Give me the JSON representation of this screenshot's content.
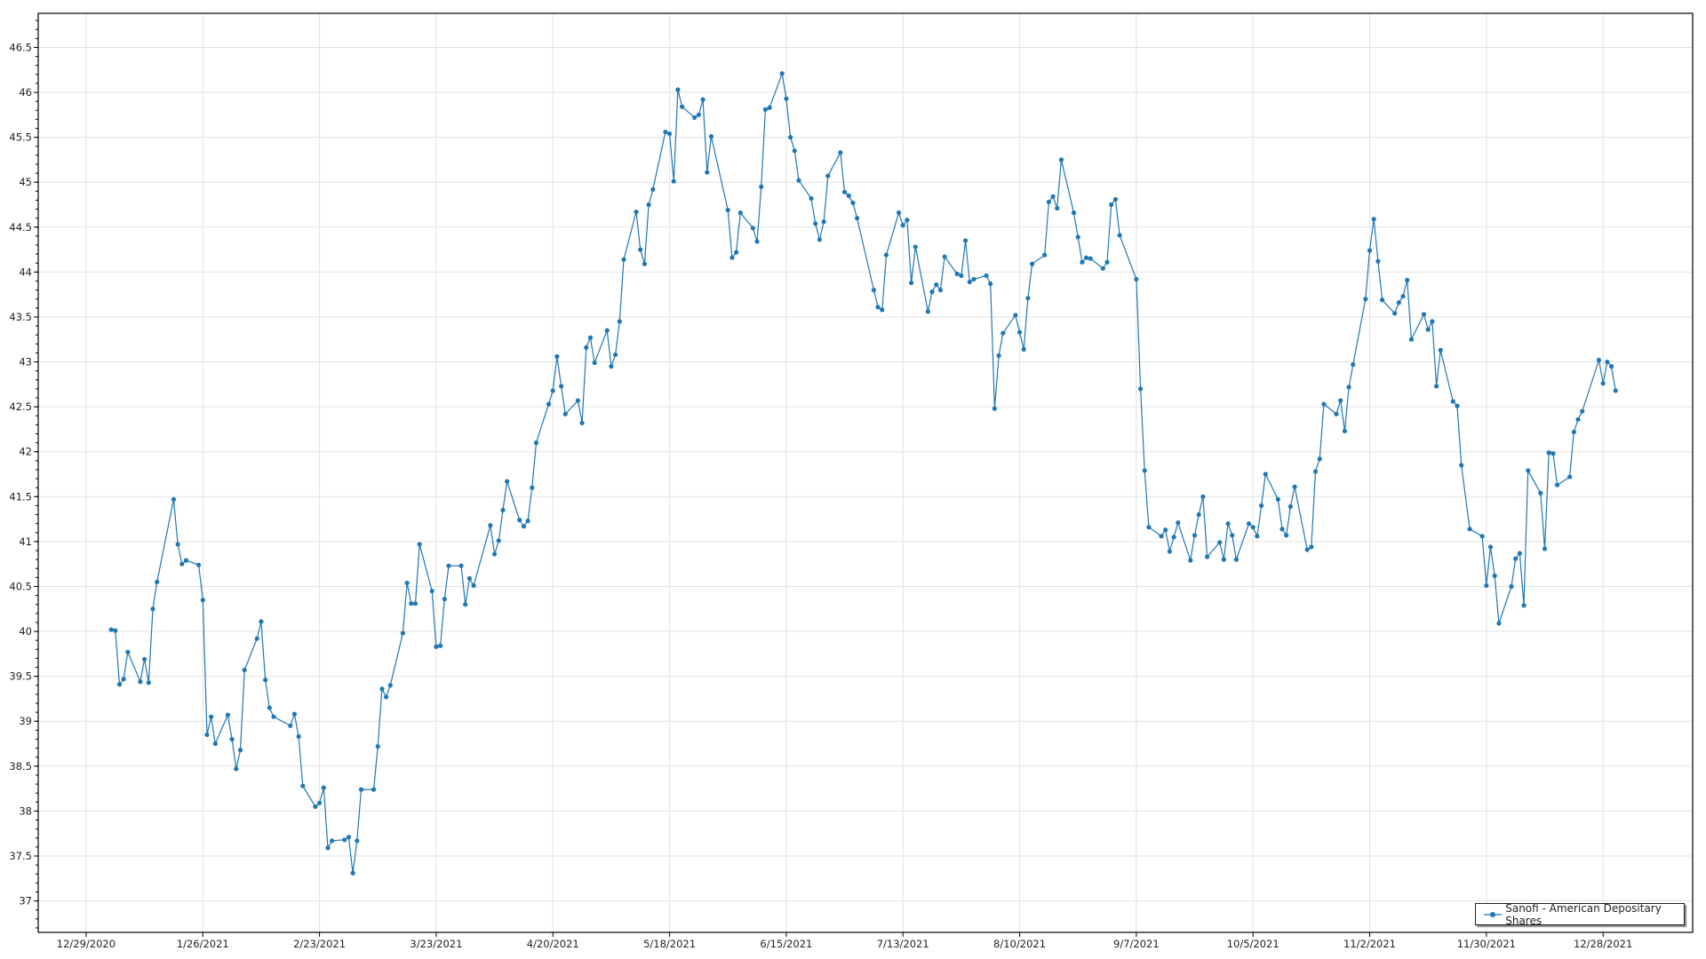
{
  "chart_data": {
    "type": "line",
    "title": "",
    "xlabel": "",
    "ylabel": "",
    "xlim": [
      "2020-12-17T12:00",
      "2022-01-18T12:00"
    ],
    "ylim": [
      36.65,
      46.88
    ],
    "grid": true,
    "legend_position": "bottom-right",
    "x_ticks": [
      "12/29/2020",
      "1/26/2021",
      "2/23/2021",
      "3/23/2021",
      "4/20/2021",
      "5/18/2021",
      "6/15/2021",
      "7/13/2021",
      "8/10/2021",
      "9/7/2021",
      "10/5/2021",
      "11/2/2021",
      "11/30/2021",
      "12/28/2021"
    ],
    "y_ticks": [
      "37",
      "37.5",
      "38",
      "38.5",
      "39",
      "39.5",
      "40",
      "40.5",
      "41",
      "41.5",
      "42",
      "42.5",
      "43",
      "43.5",
      "44",
      "44.5",
      "45",
      "45.5",
      "46",
      "46.5"
    ],
    "y_minor_step": 0.1,
    "series": [
      {
        "name": "Sanofi - American Depositary Shares",
        "color": "#1f77b4",
        "marker": "circle",
        "points": [
          [
            "2021-01-04",
            40.02
          ],
          [
            "2021-01-05",
            40.01
          ],
          [
            "2021-01-06",
            39.41
          ],
          [
            "2021-01-07",
            39.47
          ],
          [
            "2021-01-08",
            39.77
          ],
          [
            "2021-01-11",
            39.44
          ],
          [
            "2021-01-12",
            39.69
          ],
          [
            "2021-01-13",
            39.43
          ],
          [
            "2021-01-14",
            40.25
          ],
          [
            "2021-01-15",
            40.55
          ],
          [
            "2021-01-19",
            41.47
          ],
          [
            "2021-01-20",
            40.97
          ],
          [
            "2021-01-21",
            40.75
          ],
          [
            "2021-01-22",
            40.79
          ],
          [
            "2021-01-25",
            40.74
          ],
          [
            "2021-01-26",
            40.35
          ],
          [
            "2021-01-27",
            38.85
          ],
          [
            "2021-01-28",
            39.05
          ],
          [
            "2021-01-29",
            38.75
          ],
          [
            "2021-02-01",
            39.07
          ],
          [
            "2021-02-02",
            38.8
          ],
          [
            "2021-02-03",
            38.47
          ],
          [
            "2021-02-04",
            38.68
          ],
          [
            "2021-02-05",
            39.57
          ],
          [
            "2021-02-08",
            39.92
          ],
          [
            "2021-02-09",
            40.11
          ],
          [
            "2021-02-10",
            39.46
          ],
          [
            "2021-02-11",
            39.15
          ],
          [
            "2021-02-12",
            39.05
          ],
          [
            "2021-02-16",
            38.95
          ],
          [
            "2021-02-17",
            39.08
          ],
          [
            "2021-02-18",
            38.83
          ],
          [
            "2021-02-19",
            38.28
          ],
          [
            "2021-02-22",
            38.05
          ],
          [
            "2021-02-23",
            38.09
          ],
          [
            "2021-02-24",
            38.26
          ],
          [
            "2021-02-25",
            37.59
          ],
          [
            "2021-02-26",
            37.67
          ],
          [
            "2021-03-01",
            37.68
          ],
          [
            "2021-03-02",
            37.71
          ],
          [
            "2021-03-03",
            37.31
          ],
          [
            "2021-03-04",
            37.67
          ],
          [
            "2021-03-05",
            38.24
          ],
          [
            "2021-03-08",
            38.24
          ],
          [
            "2021-03-09",
            38.72
          ],
          [
            "2021-03-10",
            39.36
          ],
          [
            "2021-03-11",
            39.27
          ],
          [
            "2021-03-12",
            39.4
          ],
          [
            "2021-03-15",
            39.98
          ],
          [
            "2021-03-16",
            40.54
          ],
          [
            "2021-03-17",
            40.31
          ],
          [
            "2021-03-18",
            40.31
          ],
          [
            "2021-03-19",
            40.97
          ],
          [
            "2021-03-22",
            40.45
          ],
          [
            "2021-03-23",
            39.83
          ],
          [
            "2021-03-24",
            39.84
          ],
          [
            "2021-03-25",
            40.36
          ],
          [
            "2021-03-26",
            40.73
          ],
          [
            "2021-03-29",
            40.73
          ],
          [
            "2021-03-30",
            40.3
          ],
          [
            "2021-03-31",
            40.59
          ],
          [
            "2021-04-01",
            40.51
          ],
          [
            "2021-04-05",
            41.18
          ],
          [
            "2021-04-06",
            40.86
          ],
          [
            "2021-04-07",
            41.01
          ],
          [
            "2021-04-08",
            41.35
          ],
          [
            "2021-04-09",
            41.67
          ],
          [
            "2021-04-12",
            41.24
          ],
          [
            "2021-04-13",
            41.17
          ],
          [
            "2021-04-14",
            41.23
          ],
          [
            "2021-04-15",
            41.6
          ],
          [
            "2021-04-16",
            42.1
          ],
          [
            "2021-04-19",
            42.53
          ],
          [
            "2021-04-20",
            42.68
          ],
          [
            "2021-04-21",
            43.06
          ],
          [
            "2021-04-22",
            42.73
          ],
          [
            "2021-04-23",
            42.42
          ],
          [
            "2021-04-26",
            42.57
          ],
          [
            "2021-04-27",
            42.32
          ],
          [
            "2021-04-28",
            43.16
          ],
          [
            "2021-04-29",
            43.27
          ],
          [
            "2021-04-30",
            42.99
          ],
          [
            "2021-05-03",
            43.35
          ],
          [
            "2021-05-04",
            42.95
          ],
          [
            "2021-05-05",
            43.08
          ],
          [
            "2021-05-06",
            43.45
          ],
          [
            "2021-05-07",
            44.14
          ],
          [
            "2021-05-10",
            44.67
          ],
          [
            "2021-05-11",
            44.25
          ],
          [
            "2021-05-12",
            44.09
          ],
          [
            "2021-05-13",
            44.75
          ],
          [
            "2021-05-14",
            44.92
          ],
          [
            "2021-05-17",
            45.56
          ],
          [
            "2021-05-18",
            45.54
          ],
          [
            "2021-05-19",
            45.01
          ],
          [
            "2021-05-20",
            46.03
          ],
          [
            "2021-05-21",
            45.84
          ],
          [
            "2021-05-24",
            45.72
          ],
          [
            "2021-05-25",
            45.75
          ],
          [
            "2021-05-26",
            45.92
          ],
          [
            "2021-05-27",
            45.11
          ],
          [
            "2021-05-28",
            45.51
          ],
          [
            "2021-06-01",
            44.69
          ],
          [
            "2021-06-02",
            44.16
          ],
          [
            "2021-06-03",
            44.22
          ],
          [
            "2021-06-04",
            44.66
          ],
          [
            "2021-06-07",
            44.49
          ],
          [
            "2021-06-08",
            44.34
          ],
          [
            "2021-06-09",
            44.95
          ],
          [
            "2021-06-10",
            45.81
          ],
          [
            "2021-06-11",
            45.83
          ],
          [
            "2021-06-14",
            46.21
          ],
          [
            "2021-06-15",
            45.93
          ],
          [
            "2021-06-16",
            45.5
          ],
          [
            "2021-06-17",
            45.35
          ],
          [
            "2021-06-18",
            45.02
          ],
          [
            "2021-06-21",
            44.82
          ],
          [
            "2021-06-22",
            44.54
          ],
          [
            "2021-06-23",
            44.36
          ],
          [
            "2021-06-24",
            44.56
          ],
          [
            "2021-06-25",
            45.07
          ],
          [
            "2021-06-28",
            45.33
          ],
          [
            "2021-06-29",
            44.89
          ],
          [
            "2021-06-30",
            44.85
          ],
          [
            "2021-07-01",
            44.77
          ],
          [
            "2021-07-02",
            44.6
          ],
          [
            "2021-07-06",
            43.8
          ],
          [
            "2021-07-07",
            43.61
          ],
          [
            "2021-07-08",
            43.58
          ],
          [
            "2021-07-09",
            44.19
          ],
          [
            "2021-07-12",
            44.66
          ],
          [
            "2021-07-13",
            44.52
          ],
          [
            "2021-07-14",
            44.58
          ],
          [
            "2021-07-15",
            43.88
          ],
          [
            "2021-07-16",
            44.28
          ],
          [
            "2021-07-19",
            43.56
          ],
          [
            "2021-07-20",
            43.78
          ],
          [
            "2021-07-21",
            43.86
          ],
          [
            "2021-07-22",
            43.8
          ],
          [
            "2021-07-23",
            44.17
          ],
          [
            "2021-07-26",
            43.98
          ],
          [
            "2021-07-27",
            43.96
          ],
          [
            "2021-07-28",
            44.35
          ],
          [
            "2021-07-29",
            43.89
          ],
          [
            "2021-07-30",
            43.92
          ],
          [
            "2021-08-02",
            43.96
          ],
          [
            "2021-08-03",
            43.87
          ],
          [
            "2021-08-04",
            42.48
          ],
          [
            "2021-08-05",
            43.07
          ],
          [
            "2021-08-06",
            43.32
          ],
          [
            "2021-08-09",
            43.52
          ],
          [
            "2021-08-10",
            43.33
          ],
          [
            "2021-08-11",
            43.14
          ],
          [
            "2021-08-12",
            43.71
          ],
          [
            "2021-08-13",
            44.09
          ],
          [
            "2021-08-16",
            44.19
          ],
          [
            "2021-08-17",
            44.78
          ],
          [
            "2021-08-18",
            44.84
          ],
          [
            "2021-08-19",
            44.71
          ],
          [
            "2021-08-20",
            45.25
          ],
          [
            "2021-08-23",
            44.66
          ],
          [
            "2021-08-24",
            44.39
          ],
          [
            "2021-08-25",
            44.11
          ],
          [
            "2021-08-26",
            44.16
          ],
          [
            "2021-08-27",
            44.15
          ],
          [
            "2021-08-30",
            44.04
          ],
          [
            "2021-08-31",
            44.11
          ],
          [
            "2021-09-01",
            44.75
          ],
          [
            "2021-09-02",
            44.81
          ],
          [
            "2021-09-03",
            44.41
          ],
          [
            "2021-09-07",
            43.92
          ],
          [
            "2021-09-08",
            42.7
          ],
          [
            "2021-09-09",
            41.79
          ],
          [
            "2021-09-10",
            41.16
          ],
          [
            "2021-09-13",
            41.06
          ],
          [
            "2021-09-14",
            41.13
          ],
          [
            "2021-09-15",
            40.89
          ],
          [
            "2021-09-16",
            41.05
          ],
          [
            "2021-09-17",
            41.21
          ],
          [
            "2021-09-20",
            40.79
          ],
          [
            "2021-09-21",
            41.07
          ],
          [
            "2021-09-22",
            41.3
          ],
          [
            "2021-09-23",
            41.5
          ],
          [
            "2021-09-24",
            40.83
          ],
          [
            "2021-09-27",
            40.99
          ],
          [
            "2021-09-28",
            40.8
          ],
          [
            "2021-09-29",
            41.2
          ],
          [
            "2021-09-30",
            41.07
          ],
          [
            "2021-10-01",
            40.8
          ],
          [
            "2021-10-04",
            41.2
          ],
          [
            "2021-10-05",
            41.16
          ],
          [
            "2021-10-06",
            41.06
          ],
          [
            "2021-10-07",
            41.4
          ],
          [
            "2021-10-08",
            41.75
          ],
          [
            "2021-10-11",
            41.47
          ],
          [
            "2021-10-12",
            41.14
          ],
          [
            "2021-10-13",
            41.07
          ],
          [
            "2021-10-14",
            41.39
          ],
          [
            "2021-10-15",
            41.61
          ],
          [
            "2021-10-18",
            40.91
          ],
          [
            "2021-10-19",
            40.94
          ],
          [
            "2021-10-20",
            41.78
          ],
          [
            "2021-10-21",
            41.92
          ],
          [
            "2021-10-22",
            42.53
          ],
          [
            "2021-10-25",
            42.42
          ],
          [
            "2021-10-26",
            42.57
          ],
          [
            "2021-10-27",
            42.23
          ],
          [
            "2021-10-28",
            42.72
          ],
          [
            "2021-10-29",
            42.97
          ],
          [
            "2021-11-01",
            43.7
          ],
          [
            "2021-11-02",
            44.24
          ],
          [
            "2021-11-03",
            44.59
          ],
          [
            "2021-11-04",
            44.12
          ],
          [
            "2021-11-05",
            43.69
          ],
          [
            "2021-11-08",
            43.54
          ],
          [
            "2021-11-09",
            43.66
          ],
          [
            "2021-11-10",
            43.73
          ],
          [
            "2021-11-11",
            43.91
          ],
          [
            "2021-11-12",
            43.25
          ],
          [
            "2021-11-15",
            43.53
          ],
          [
            "2021-11-16",
            43.36
          ],
          [
            "2021-11-17",
            43.45
          ],
          [
            "2021-11-18",
            42.73
          ],
          [
            "2021-11-19",
            43.13
          ],
          [
            "2021-11-22",
            42.56
          ],
          [
            "2021-11-23",
            42.51
          ],
          [
            "2021-11-24",
            41.85
          ],
          [
            "2021-11-26",
            41.14
          ],
          [
            "2021-11-29",
            41.06
          ],
          [
            "2021-11-30",
            40.51
          ],
          [
            "2021-12-01",
            40.94
          ],
          [
            "2021-12-02",
            40.62
          ],
          [
            "2021-12-03",
            40.09
          ],
          [
            "2021-12-06",
            40.5
          ],
          [
            "2021-12-07",
            40.81
          ],
          [
            "2021-12-08",
            40.87
          ],
          [
            "2021-12-09",
            40.29
          ],
          [
            "2021-12-10",
            41.79
          ],
          [
            "2021-12-13",
            41.54
          ],
          [
            "2021-12-14",
            40.92
          ],
          [
            "2021-12-15",
            41.99
          ],
          [
            "2021-12-16",
            41.98
          ],
          [
            "2021-12-17",
            41.63
          ],
          [
            "2021-12-20",
            41.72
          ],
          [
            "2021-12-21",
            42.22
          ],
          [
            "2021-12-22",
            42.36
          ],
          [
            "2021-12-23",
            42.45
          ],
          [
            "2021-12-27",
            43.02
          ],
          [
            "2021-12-28",
            42.76
          ],
          [
            "2021-12-29",
            43.0
          ],
          [
            "2021-12-30",
            42.95
          ],
          [
            "2021-12-31",
            42.68
          ]
        ]
      }
    ]
  }
}
